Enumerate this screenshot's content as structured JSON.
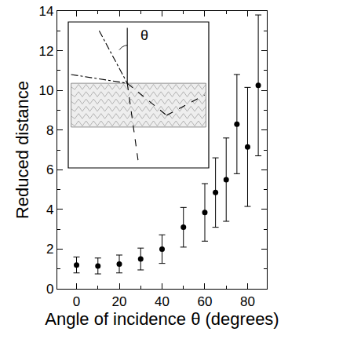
{
  "chart_data": {
    "type": "scatter",
    "xlabel": "Angle of incidence θ (degrees)",
    "ylabel": "Reduced distance",
    "x": [
      0,
      10,
      20,
      30,
      40,
      50,
      60,
      65,
      70,
      75,
      80,
      85
    ],
    "values": [
      1.2,
      1.15,
      1.25,
      1.5,
      2.0,
      3.1,
      3.85,
      4.85,
      5.5,
      8.3,
      7.15,
      10.25
    ],
    "error": [
      0.4,
      0.4,
      0.45,
      0.55,
      0.72,
      1.0,
      1.45,
      1.75,
      2.1,
      2.5,
      3.0,
      3.55
    ],
    "color": "#000000",
    "marker": "circle",
    "xlim": [
      -9,
      89
    ],
    "ylim": [
      0,
      14
    ],
    "xticks": [
      0,
      20,
      40,
      60,
      80
    ],
    "yticks": [
      0,
      2,
      4,
      6,
      8,
      10,
      12,
      14
    ],
    "grid": false,
    "annotations": [
      {
        "text": "θ"
      }
    ]
  }
}
